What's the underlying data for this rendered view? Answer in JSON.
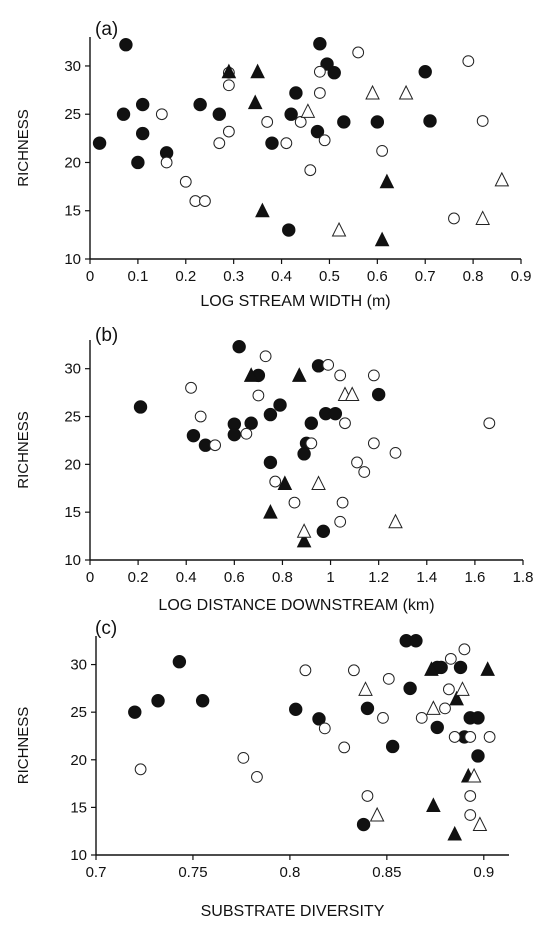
{
  "chart_data": [
    {
      "type": "scatter",
      "panel_label": "(a)",
      "xlabel": "LOG STREAM WIDTH (m)",
      "ylabel": "RICHNESS",
      "xlim": [
        0,
        0.9
      ],
      "ylim": [
        10,
        33
      ],
      "xticks": [
        0,
        0.1,
        0.2,
        0.3,
        0.4,
        0.5,
        0.6,
        0.7,
        0.8,
        0.9
      ],
      "xtick_labels": [
        "0",
        "0.1",
        "0.2",
        "0.3",
        "0.4",
        "0.5",
        "0.6",
        "0.7",
        "0.8",
        "0.9"
      ],
      "yticks": [
        10,
        15,
        20,
        25,
        30
      ],
      "ytick_labels": [
        "10",
        "15",
        "20",
        "25",
        "30"
      ],
      "series": [
        {
          "marker": "filled-circle",
          "points": [
            [
              0.075,
              32.2
            ],
            [
              0.07,
              25
            ],
            [
              0.11,
              26
            ],
            [
              0.11,
              23
            ],
            [
              0.1,
              20
            ],
            [
              0.02,
              22
            ],
            [
              0.16,
              21
            ],
            [
              0.23,
              26
            ],
            [
              0.27,
              25
            ],
            [
              0.38,
              22
            ],
            [
              0.42,
              25
            ],
            [
              0.43,
              27.2
            ],
            [
              0.415,
              13
            ],
            [
              0.48,
              32.3
            ],
            [
              0.495,
              30.2
            ],
            [
              0.51,
              29.3
            ],
            [
              0.475,
              23.2
            ],
            [
              0.53,
              24.2
            ],
            [
              0.6,
              24.2
            ],
            [
              0.7,
              29.4
            ],
            [
              0.71,
              24.3
            ]
          ]
        },
        {
          "marker": "open-circle",
          "points": [
            [
              0.15,
              25
            ],
            [
              0.16,
              20
            ],
            [
              0.2,
              18
            ],
            [
              0.22,
              16
            ],
            [
              0.24,
              16
            ],
            [
              0.29,
              29.3
            ],
            [
              0.29,
              28
            ],
            [
              0.27,
              22
            ],
            [
              0.29,
              23.2
            ],
            [
              0.37,
              24.2
            ],
            [
              0.41,
              22
            ],
            [
              0.44,
              24.2
            ],
            [
              0.46,
              19.2
            ],
            [
              0.48,
              29.4
            ],
            [
              0.48,
              27.2
            ],
            [
              0.49,
              22.3
            ],
            [
              0.56,
              31.4
            ],
            [
              0.61,
              21.2
            ],
            [
              0.79,
              30.5
            ],
            [
              0.82,
              24.3
            ],
            [
              0.76,
              14.2
            ]
          ]
        },
        {
          "marker": "filled-triangle",
          "points": [
            [
              0.29,
              29.4
            ],
            [
              0.35,
              29.4
            ],
            [
              0.345,
              26.2
            ],
            [
              0.36,
              15
            ],
            [
              0.61,
              12
            ],
            [
              0.62,
              18
            ]
          ]
        },
        {
          "marker": "open-triangle",
          "points": [
            [
              0.455,
              25.3
            ],
            [
              0.52,
              13
            ],
            [
              0.59,
              27.2
            ],
            [
              0.66,
              27.2
            ],
            [
              0.82,
              14.2
            ],
            [
              0.86,
              18.2
            ]
          ]
        }
      ]
    },
    {
      "type": "scatter",
      "panel_label": "(b)",
      "xlabel": "LOG DISTANCE DOWNSTREAM (km)",
      "ylabel": "RICHNESS",
      "xlim": [
        0,
        1.8
      ],
      "ylim": [
        10,
        33
      ],
      "xticks": [
        0,
        0.2,
        0.4,
        0.6,
        0.8,
        1.0,
        1.2,
        1.4,
        1.6,
        1.8
      ],
      "xtick_labels": [
        "0",
        "0.2",
        "0.4",
        "0.6",
        "0.8",
        "1",
        "1.2",
        "1.4",
        "1.6",
        "1.8"
      ],
      "yticks": [
        10,
        15,
        20,
        25,
        30
      ],
      "ytick_labels": [
        "10",
        "15",
        "20",
        "25",
        "30"
      ],
      "series": [
        {
          "marker": "filled-circle",
          "points": [
            [
              0.21,
              26
            ],
            [
              0.43,
              23
            ],
            [
              0.48,
              22
            ],
            [
              0.6,
              24.2
            ],
            [
              0.6,
              23.1
            ],
            [
              0.62,
              32.3
            ],
            [
              0.67,
              24.3
            ],
            [
              0.7,
              29.3
            ],
            [
              0.75,
              25.2
            ],
            [
              0.75,
              20.2
            ],
            [
              0.79,
              26.2
            ],
            [
              0.9,
              22.2
            ],
            [
              0.89,
              21.1
            ],
            [
              0.92,
              24.3
            ],
            [
              0.95,
              30.3
            ],
            [
              0.98,
              25.3
            ],
            [
              1.02,
              25.3
            ],
            [
              1.2,
              27.3
            ],
            [
              0.97,
              13
            ]
          ]
        },
        {
          "marker": "open-circle",
          "points": [
            [
              0.42,
              28
            ],
            [
              0.46,
              25
            ],
            [
              0.52,
              22
            ],
            [
              0.65,
              23.2
            ],
            [
              0.7,
              27.2
            ],
            [
              0.73,
              31.3
            ],
            [
              0.77,
              18.2
            ],
            [
              0.85,
              16
            ],
            [
              0.92,
              22.2
            ],
            [
              0.99,
              30.4
            ],
            [
              1.04,
              29.3
            ],
            [
              1.06,
              24.3
            ],
            [
              1.05,
              16
            ],
            [
              1.04,
              14
            ],
            [
              1.11,
              20.2
            ],
            [
              1.14,
              19.2
            ],
            [
              1.18,
              22.2
            ],
            [
              1.18,
              29.3
            ],
            [
              1.27,
              21.2
            ],
            [
              1.66,
              24.3
            ]
          ]
        },
        {
          "marker": "filled-triangle",
          "points": [
            [
              0.67,
              29.3
            ],
            [
              0.81,
              18
            ],
            [
              0.75,
              15
            ],
            [
              0.87,
              29.3
            ],
            [
              0.89,
              12
            ]
          ]
        },
        {
          "marker": "open-triangle",
          "points": [
            [
              0.89,
              13
            ],
            [
              0.95,
              18
            ],
            [
              1.06,
              27.3
            ],
            [
              1.09,
              27.3
            ],
            [
              1.27,
              14
            ]
          ]
        }
      ]
    },
    {
      "type": "scatter",
      "panel_label": "(c)",
      "xlabel": "SUBSTRATE DIVERSITY",
      "ylabel": "RICHNESS",
      "xlim": [
        0.7,
        0.913
      ],
      "ylim": [
        10,
        33
      ],
      "xticks": [
        0.7,
        0.75,
        0.8,
        0.85,
        0.9
      ],
      "xtick_labels": [
        "0.7",
        "0.75",
        "0.8",
        "0.85",
        "0.9"
      ],
      "yticks": [
        10,
        15,
        20,
        25,
        30
      ],
      "ytick_labels": [
        "10",
        "15",
        "20",
        "25",
        "30"
      ],
      "series": [
        {
          "marker": "filled-circle",
          "points": [
            [
              0.72,
              25
            ],
            [
              0.732,
              26.2
            ],
            [
              0.743,
              30.3
            ],
            [
              0.755,
              26.2
            ],
            [
              0.803,
              25.3
            ],
            [
              0.815,
              24.3
            ],
            [
              0.84,
              25.4
            ],
            [
              0.853,
              21.4
            ],
            [
              0.838,
              13.2
            ],
            [
              0.86,
              32.5
            ],
            [
              0.865,
              32.5
            ],
            [
              0.862,
              27.5
            ],
            [
              0.876,
              29.7
            ],
            [
              0.878,
              29.7
            ],
            [
              0.888,
              29.7
            ],
            [
              0.876,
              23.4
            ],
            [
              0.89,
              22.4
            ],
            [
              0.893,
              24.4
            ],
            [
              0.897,
              24.4
            ],
            [
              0.897,
              20.4
            ]
          ]
        },
        {
          "marker": "open-circle",
          "points": [
            [
              0.723,
              19
            ],
            [
              0.776,
              20.2
            ],
            [
              0.783,
              18.2
            ],
            [
              0.808,
              29.4
            ],
            [
              0.818,
              23.3
            ],
            [
              0.828,
              21.3
            ],
            [
              0.833,
              29.4
            ],
            [
              0.848,
              24.4
            ],
            [
              0.851,
              28.5
            ],
            [
              0.84,
              16.2
            ],
            [
              0.868,
              24.4
            ],
            [
              0.88,
              25.4
            ],
            [
              0.882,
              27.4
            ],
            [
              0.883,
              30.6
            ],
            [
              0.885,
              22.4
            ],
            [
              0.89,
              31.6
            ],
            [
              0.893,
              22.4
            ],
            [
              0.903,
              22.4
            ],
            [
              0.893,
              16.2
            ],
            [
              0.893,
              14.2
            ]
          ]
        },
        {
          "marker": "filled-triangle",
          "points": [
            [
              0.873,
              29.5
            ],
            [
              0.874,
              15.2
            ],
            [
              0.885,
              12.2
            ],
            [
              0.886,
              26.4
            ],
            [
              0.902,
              29.5
            ],
            [
              0.892,
              18.3
            ]
          ]
        },
        {
          "marker": "open-triangle",
          "points": [
            [
              0.839,
              27.4
            ],
            [
              0.845,
              14.2
            ],
            [
              0.874,
              25.4
            ],
            [
              0.889,
              27.4
            ],
            [
              0.895,
              18.3
            ],
            [
              0.898,
              13.2
            ]
          ]
        }
      ]
    }
  ]
}
